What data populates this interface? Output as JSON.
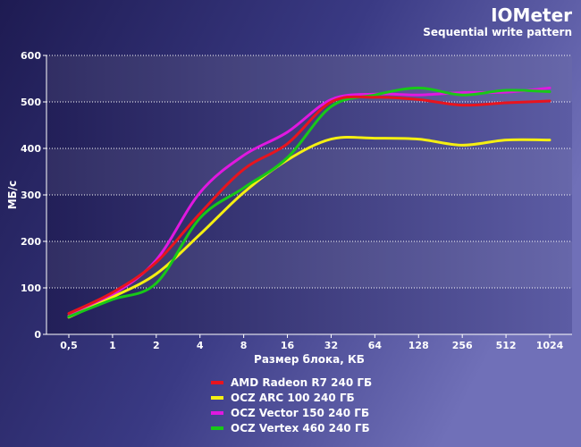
{
  "chart_data": {
    "type": "line",
    "title": "IOMeter",
    "subtitle": "Sequential write pattern",
    "xlabel": "Размер блока, КБ",
    "ylabel": "МБ/с",
    "categories": [
      "0,5",
      "1",
      "2",
      "4",
      "8",
      "16",
      "32",
      "64",
      "128",
      "256",
      "512",
      "1024"
    ],
    "ylim": [
      0,
      600
    ],
    "yticks": [
      0,
      100,
      200,
      300,
      400,
      500,
      600
    ],
    "grid": true,
    "legend_position": "bottom",
    "series": [
      {
        "name": "AMD Radeon R7 240 ГБ",
        "color": "#e8141e",
        "values": [
          45,
          90,
          155,
          260,
          355,
          410,
          500,
          510,
          505,
          493,
          498,
          502
        ]
      },
      {
        "name": "OCZ ARC 100 240 ГБ",
        "color": "#f5ef12",
        "values": [
          37,
          80,
          130,
          215,
          305,
          375,
          420,
          422,
          420,
          407,
          418,
          418
        ]
      },
      {
        "name": "OCZ Vector 150 240 ГБ",
        "color": "#e018e0",
        "values": [
          40,
          85,
          160,
          305,
          385,
          435,
          505,
          517,
          515,
          520,
          521,
          530
        ]
      },
      {
        "name": "OCZ Vertex 460 240 ГБ",
        "color": "#18c818",
        "values": [
          38,
          75,
          110,
          250,
          315,
          380,
          490,
          515,
          530,
          515,
          525,
          522
        ]
      }
    ]
  }
}
